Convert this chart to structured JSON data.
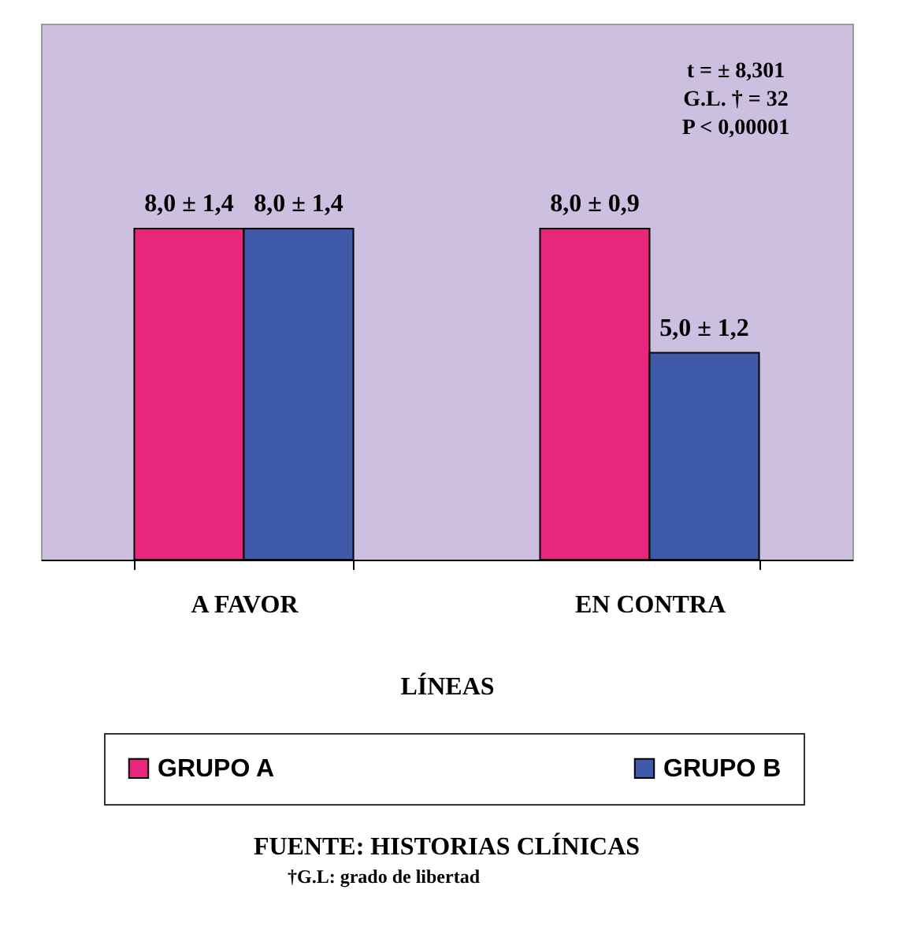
{
  "chart_data": {
    "type": "bar",
    "categories": [
      "A FAVOR",
      "EN CONTRA"
    ],
    "xlabel": "LÍNEAS",
    "series": [
      {
        "name": "GRUPO A",
        "color": "#e8267c",
        "values": [
          8,
          8
        ],
        "value_labels": [
          "8,0 ± 1,4",
          "8,0 ± 0,9"
        ]
      },
      {
        "name": "GRUPO B",
        "color": "#3f5aa8",
        "values": [
          8,
          5
        ],
        "value_labels": [
          "8,0 ± 1,4",
          "5,0 ± 1,2"
        ]
      }
    ],
    "legend": "bottom",
    "annotations": [
      "t = ± 8,301",
      "G.L. † = 32",
      "P < 0,00001",
      "FUENTE: HISTORIAS CLÍNICAS",
      "†G.L: grado de libertad"
    ]
  }
}
